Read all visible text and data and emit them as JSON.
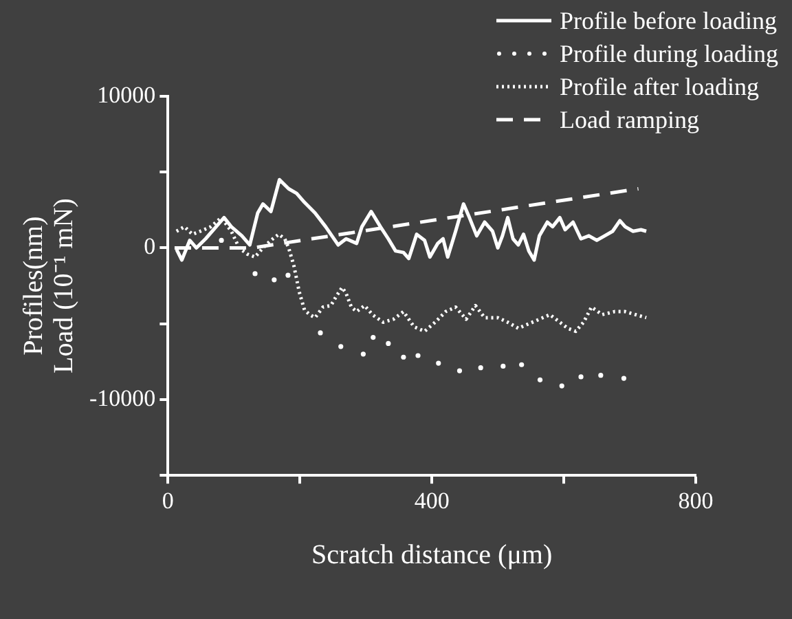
{
  "chart_data": {
    "type": "line",
    "xlabel": "Scratch distance (μm)",
    "ylabel": "Profiles(nm)\nLoad (10⁻¹ mN)",
    "xlim": [
      0,
      800
    ],
    "xticks": [
      0,
      {
        "value": 200,
        "label": null
      },
      400,
      {
        "value": 600,
        "label": null
      },
      800
    ],
    "ylim": [
      -15000,
      10000
    ],
    "yticks": [
      {
        "value": -15000,
        "label": null
      },
      -10000,
      {
        "value": -5000,
        "label": null
      },
      0,
      {
        "value": 5000,
        "label": null
      },
      10000
    ],
    "grid": false,
    "legend": "top right",
    "series": [
      {
        "name": "Profile before loading",
        "color": "#ffffff",
        "line_style": "solid",
        "marker": "none",
        "x": [
          13,
          21,
          33,
          43,
          57,
          73,
          85,
          96,
          112,
          124,
          136,
          144,
          156,
          169,
          183,
          195,
          207,
          223,
          239,
          258,
          270,
          286,
          294,
          308,
          322,
          334,
          345,
          357,
          365,
          377,
          389,
          397,
          409,
          417,
          424,
          436,
          448,
          456,
          468,
          480,
          492,
          500,
          507,
          515,
          523,
          531,
          539,
          547,
          555,
          563,
          575,
          583,
          594,
          602,
          614,
          626,
          638,
          650,
          662,
          674,
          685,
          693,
          705,
          717,
          725
        ],
        "values": [
          -100,
          -800,
          500,
          0,
          600,
          1400,
          2000,
          1400,
          800,
          200,
          2300,
          2900,
          2400,
          4500,
          3900,
          3600,
          3000,
          2300,
          1400,
          200,
          600,
          300,
          1400,
          2400,
          1400,
          600,
          -200,
          -300,
          -700,
          900,
          500,
          -600,
          300,
          600,
          -600,
          1100,
          2900,
          2100,
          800,
          1700,
          1100,
          0,
          800,
          2000,
          600,
          200,
          900,
          -200,
          -800,
          800,
          1700,
          1400,
          2000,
          1200,
          1700,
          600,
          800,
          500,
          800,
          1100,
          1800,
          1400,
          1100,
          1200,
          1100
        ]
      },
      {
        "name": "Profile during loading",
        "color": "#ffffff",
        "type": "scatter",
        "marker": "circle",
        "x": [
          81,
          132,
          161,
          182,
          231,
          262,
          296,
          311,
          334,
          357,
          379,
          410,
          442,
          474,
          508,
          536,
          564,
          597,
          626,
          656,
          691
        ],
        "values": [
          500,
          -1700,
          -2100,
          -1800,
          -5600,
          -6500,
          -7000,
          -5900,
          -6300,
          -7200,
          -7100,
          -7600,
          -8100,
          -7900,
          -7800,
          -7700,
          -8700,
          -9100,
          -8500,
          -8400,
          -8600
        ]
      },
      {
        "name": "Profile after loading",
        "color": "#ffffff",
        "line_style": "dotted",
        "marker": "none",
        "x": [
          13,
          25,
          37,
          49,
          65,
          81,
          96,
          108,
          120,
          132,
          144,
          156,
          168,
          177,
          183,
          191,
          199,
          207,
          215,
          223,
          235,
          247,
          255,
          264,
          270,
          278,
          286,
          298,
          310,
          326,
          342,
          357,
          373,
          389,
          405,
          421,
          436,
          452,
          466,
          480,
          500,
          515,
          531,
          547,
          563,
          579,
          594,
          606,
          618,
          630,
          642,
          658,
          677,
          693,
          709,
          725
        ],
        "values": [
          1100,
          1400,
          900,
          1100,
          1400,
          2000,
          1100,
          0,
          -400,
          -600,
          0,
          500,
          900,
          600,
          0,
          -1200,
          -2900,
          -4100,
          -4400,
          -4600,
          -3900,
          -3800,
          -3200,
          -2600,
          -3000,
          -3900,
          -4200,
          -3800,
          -4400,
          -4900,
          -4700,
          -4200,
          -5200,
          -5500,
          -4900,
          -4200,
          -3900,
          -4700,
          -3800,
          -4600,
          -4600,
          -4900,
          -5300,
          -5000,
          -4700,
          -4400,
          -4900,
          -5300,
          -5500,
          -4900,
          -3900,
          -4400,
          -4200,
          -4200,
          -4400,
          -4600
        ]
      },
      {
        "name": "Load ramping",
        "color": "#ffffff",
        "line_style": "dashed",
        "marker": "none",
        "x": [
          10,
          128,
          713
        ],
        "values": [
          0,
          0,
          3900
        ]
      }
    ]
  }
}
